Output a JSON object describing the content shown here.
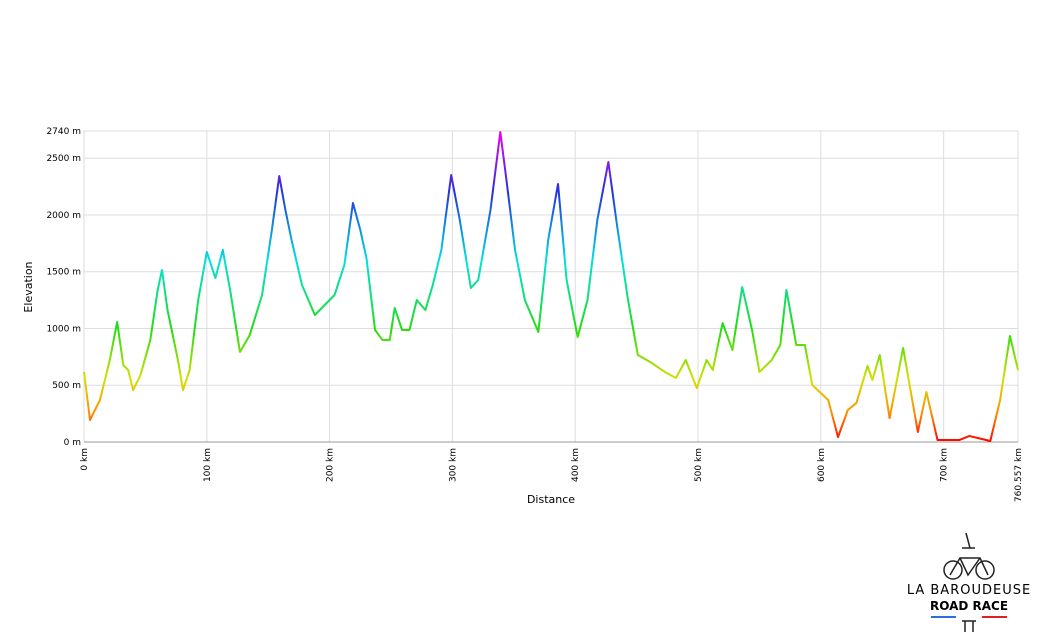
{
  "chart_data": {
    "type": "line",
    "ylabel": "Elevation",
    "xlabel": "Distance",
    "x": [
      0,
      4.9,
      13,
      21,
      27,
      32,
      36,
      40,
      46,
      54,
      60,
      63.5,
      68,
      76.5,
      80.6,
      86,
      93,
      100,
      107,
      113,
      119,
      127,
      135,
      145,
      153,
      159,
      164,
      169,
      177.5,
      188,
      196,
      204,
      212,
      219,
      225,
      230,
      237,
      243,
      249,
      253,
      259,
      265,
      271,
      278,
      284,
      291,
      299,
      306,
      315,
      321,
      331,
      339,
      344,
      351,
      359,
      370,
      378,
      386,
      393,
      402,
      410,
      418,
      427,
      434,
      443,
      451,
      461,
      473,
      482,
      490,
      499,
      507,
      512,
      520,
      528,
      536,
      544,
      550,
      560,
      567,
      572,
      580,
      587,
      593,
      606,
      614,
      622,
      629,
      638,
      642,
      648,
      656,
      667,
      679,
      686,
      695,
      713,
      721,
      738,
      746,
      754,
      760.557
    ],
    "series": [
      {
        "name": "Elevation",
        "values": [
          617,
          194,
          370,
          722,
          1057,
          678,
          634,
          458,
          590,
          899,
          1339,
          1515,
          1163,
          722,
          458,
          634,
          1251,
          1674,
          1445,
          1692,
          1339,
          793,
          943,
          1295,
          1868,
          2343,
          2044,
          1780,
          1383,
          1119,
          1207,
          1295,
          1559,
          2106,
          1868,
          1621,
          987,
          899,
          899,
          1181,
          987,
          987,
          1251,
          1163,
          1383,
          1692,
          2352,
          1956,
          1357,
          1427,
          2044,
          2731,
          2308,
          1692,
          1251,
          969,
          1780,
          2273,
          1427,
          925,
          1251,
          1956,
          2467,
          1912,
          1251,
          766,
          705,
          617,
          564,
          722,
          476,
          722,
          634,
          1048,
          810,
          1365,
          987,
          617,
          722,
          855,
          1339,
          855,
          855,
          502,
          370,
          44,
          282,
          344,
          670,
          546,
          766,
          211,
          828,
          88,
          440,
          18,
          18,
          53,
          9,
          370,
          934,
          634
        ]
      }
    ],
    "color_stops": [
      {
        "value": 0,
        "color": "#ff0000"
      },
      {
        "value": 250,
        "color": "#ff8c00"
      },
      {
        "value": 550,
        "color": "#d4e000"
      },
      {
        "value": 1000,
        "color": "#22dd11"
      },
      {
        "value": 1600,
        "color": "#00e0e0"
      },
      {
        "value": 2200,
        "color": "#2233dd"
      },
      {
        "value": 2740,
        "color": "#ee00ee"
      }
    ],
    "xlim": [
      0,
      760.557
    ],
    "ylim": [
      0,
      2740
    ],
    "xticks": [
      {
        "value": 0,
        "label": "0 km"
      },
      {
        "value": 100,
        "label": "100 km"
      },
      {
        "value": 200,
        "label": "200 km"
      },
      {
        "value": 300,
        "label": "300 km"
      },
      {
        "value": 400,
        "label": "400 km"
      },
      {
        "value": 500,
        "label": "500 km"
      },
      {
        "value": 600,
        "label": "600 km"
      },
      {
        "value": 700,
        "label": "700 km"
      },
      {
        "value": 760.557,
        "label": "760.557 km"
      }
    ],
    "yticks": [
      {
        "value": 0,
        "label": "0 m"
      },
      {
        "value": 500,
        "label": "500 m"
      },
      {
        "value": 1000,
        "label": "1000 m"
      },
      {
        "value": 1500,
        "label": "1500 m"
      },
      {
        "value": 2000,
        "label": "2000 m"
      },
      {
        "value": 2500,
        "label": "2500 m"
      },
      {
        "value": 2740,
        "label": "2740 m"
      }
    ],
    "grid": true
  },
  "logo": {
    "line1": "LA BAROUDEUSE",
    "line2": "ROAD RACE"
  }
}
